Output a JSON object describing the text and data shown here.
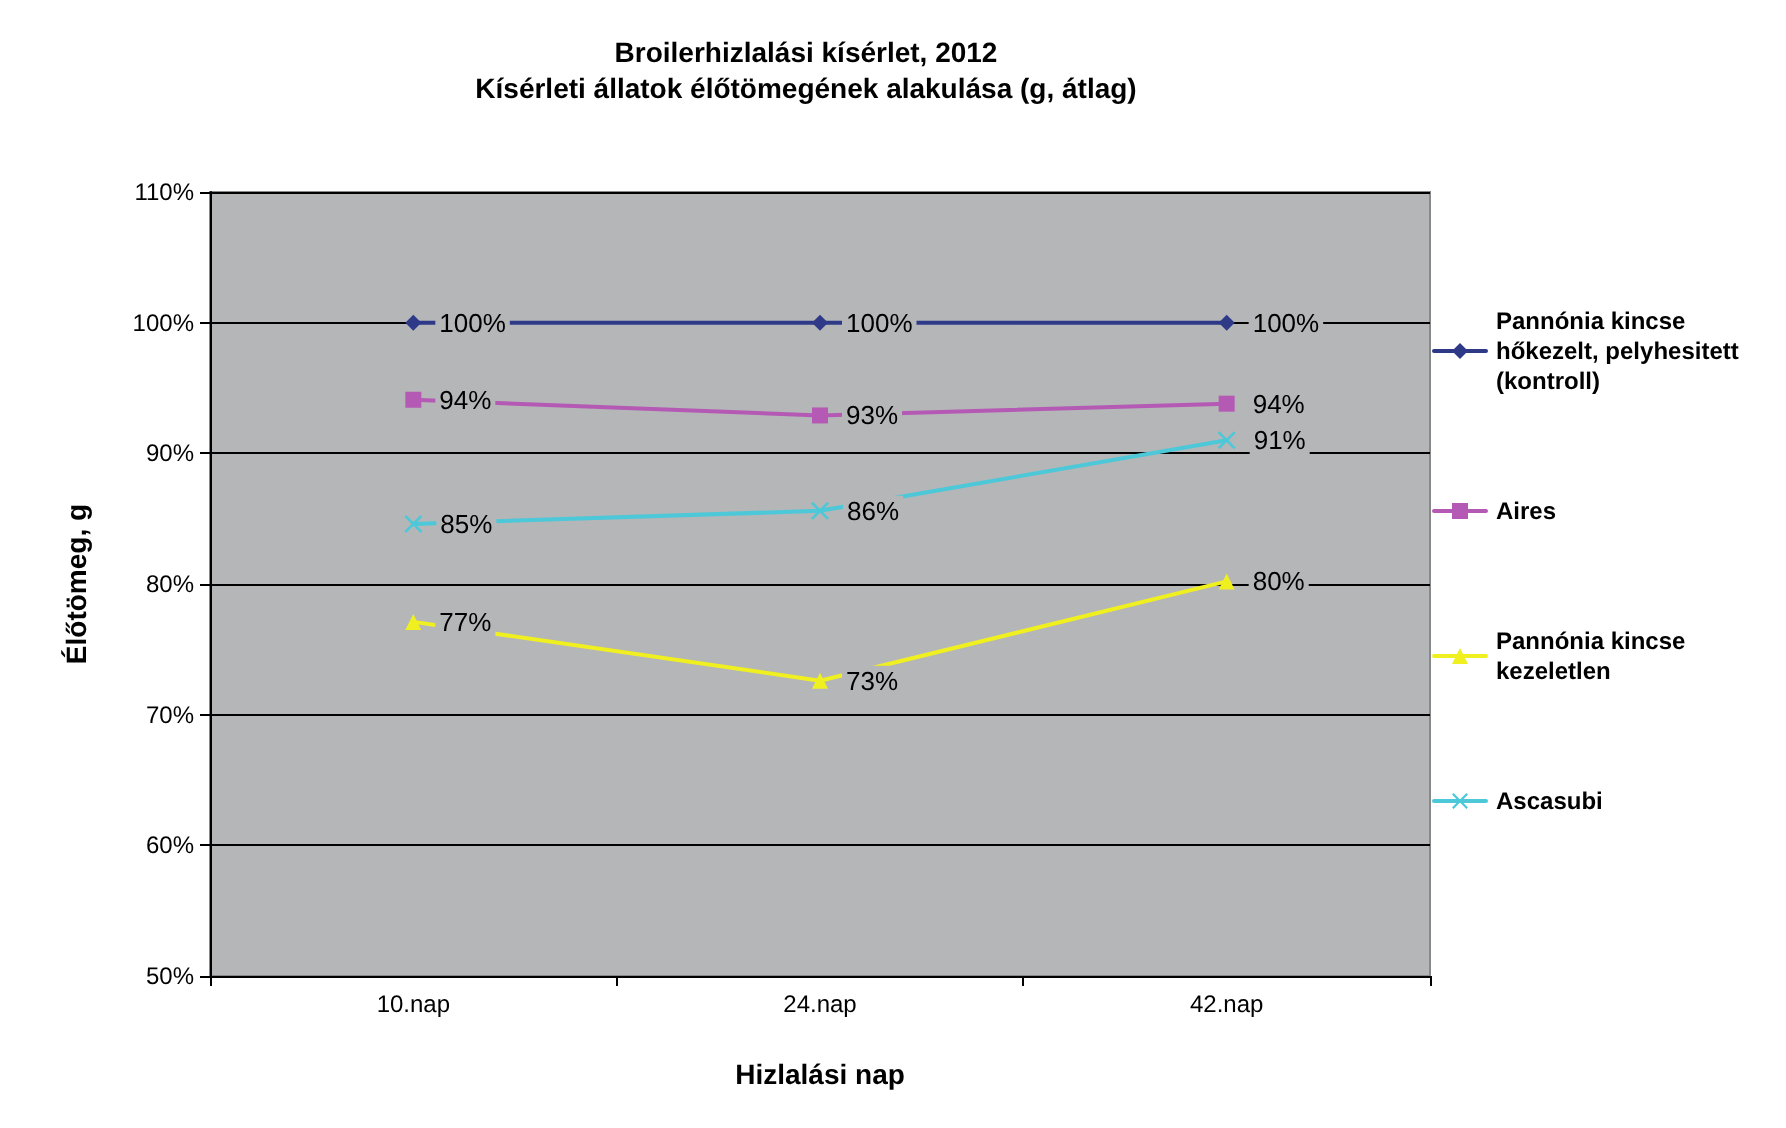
{
  "chart_data": {
    "type": "line",
    "title": "Broilerhizlalási kísérlet, 2012",
    "subtitle": "Kísérleti állatok élőtömegének alakulása (g, átlag)",
    "xlabel": "Hizlalási nap",
    "ylabel": "Élőtömeg, g",
    "categories": [
      "10.nap",
      "24.nap",
      "42.nap"
    ],
    "series": [
      {
        "name": "Pannónia kincse hőkezelt, pelyhesitett (kontroll)",
        "color": "#2e3a87",
        "marker": "diamond",
        "values": [
          100,
          100,
          100
        ],
        "value_labels": [
          "100%",
          "100%",
          "100%"
        ]
      },
      {
        "name": "Aires",
        "color": "#b45ab4",
        "marker": "square",
        "values": [
          94.1,
          92.9,
          93.8
        ],
        "value_labels": [
          "94%",
          "93%",
          "94%"
        ]
      },
      {
        "name": "Pannónia kincse kezeletlen",
        "color": "#f0f020",
        "marker": "triangle",
        "values": [
          77.1,
          72.6,
          80.2
        ],
        "value_labels": [
          "77%",
          "73%",
          "80%"
        ]
      },
      {
        "name": "Ascasubi",
        "color": "#4cc8d8",
        "marker": "cross",
        "values": [
          84.6,
          85.6,
          91.0
        ],
        "value_labels": [
          "85%",
          "86%",
          "91%"
        ]
      }
    ],
    "ylim": [
      50,
      110
    ],
    "yticks": [
      {
        "value": 50,
        "label": "50%"
      },
      {
        "value": 60,
        "label": "60%"
      },
      {
        "value": 70,
        "label": "70%"
      },
      {
        "value": 80,
        "label": "80%"
      },
      {
        "value": 90,
        "label": "90%"
      },
      {
        "value": 100,
        "label": "100%"
      },
      {
        "value": 110,
        "label": "110%"
      }
    ],
    "grid": "y",
    "legend": "right"
  }
}
